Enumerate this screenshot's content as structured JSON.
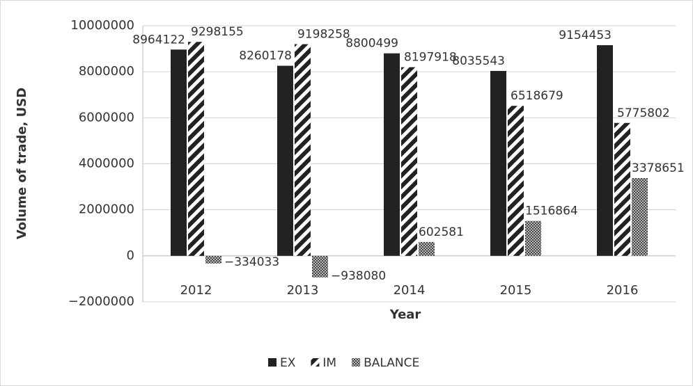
{
  "chart_data": {
    "type": "bar",
    "x_label": "Year",
    "y_label": "Volume of trade, USD",
    "categories": [
      "2012",
      "2013",
      "2014",
      "2015",
      "2016"
    ],
    "series": [
      {
        "name": "EX",
        "color": "#222222",
        "pattern": "solid",
        "values": [
          8964122,
          8260178,
          8800499,
          8035543,
          9154453
        ]
      },
      {
        "name": "IM",
        "color": "#222222",
        "pattern": "diagonal",
        "values": [
          9298155,
          9198258,
          8197918,
          6518679,
          5775802
        ]
      },
      {
        "name": "BALANCE",
        "color": "#555555",
        "pattern": "checker",
        "values": [
          -334033,
          -938080,
          602581,
          1516864,
          3378651
        ],
        "value_labels": [
          "−334033",
          "−938080",
          "602581",
          "1516864",
          "3378651"
        ]
      }
    ],
    "ylim": [
      -2000000,
      10000000
    ],
    "yticks": [
      {
        "value": -2000000,
        "label": "−2000000"
      },
      0,
      2000000,
      4000000,
      6000000,
      8000000,
      10000000
    ],
    "grid": true,
    "legend": "bottom"
  }
}
